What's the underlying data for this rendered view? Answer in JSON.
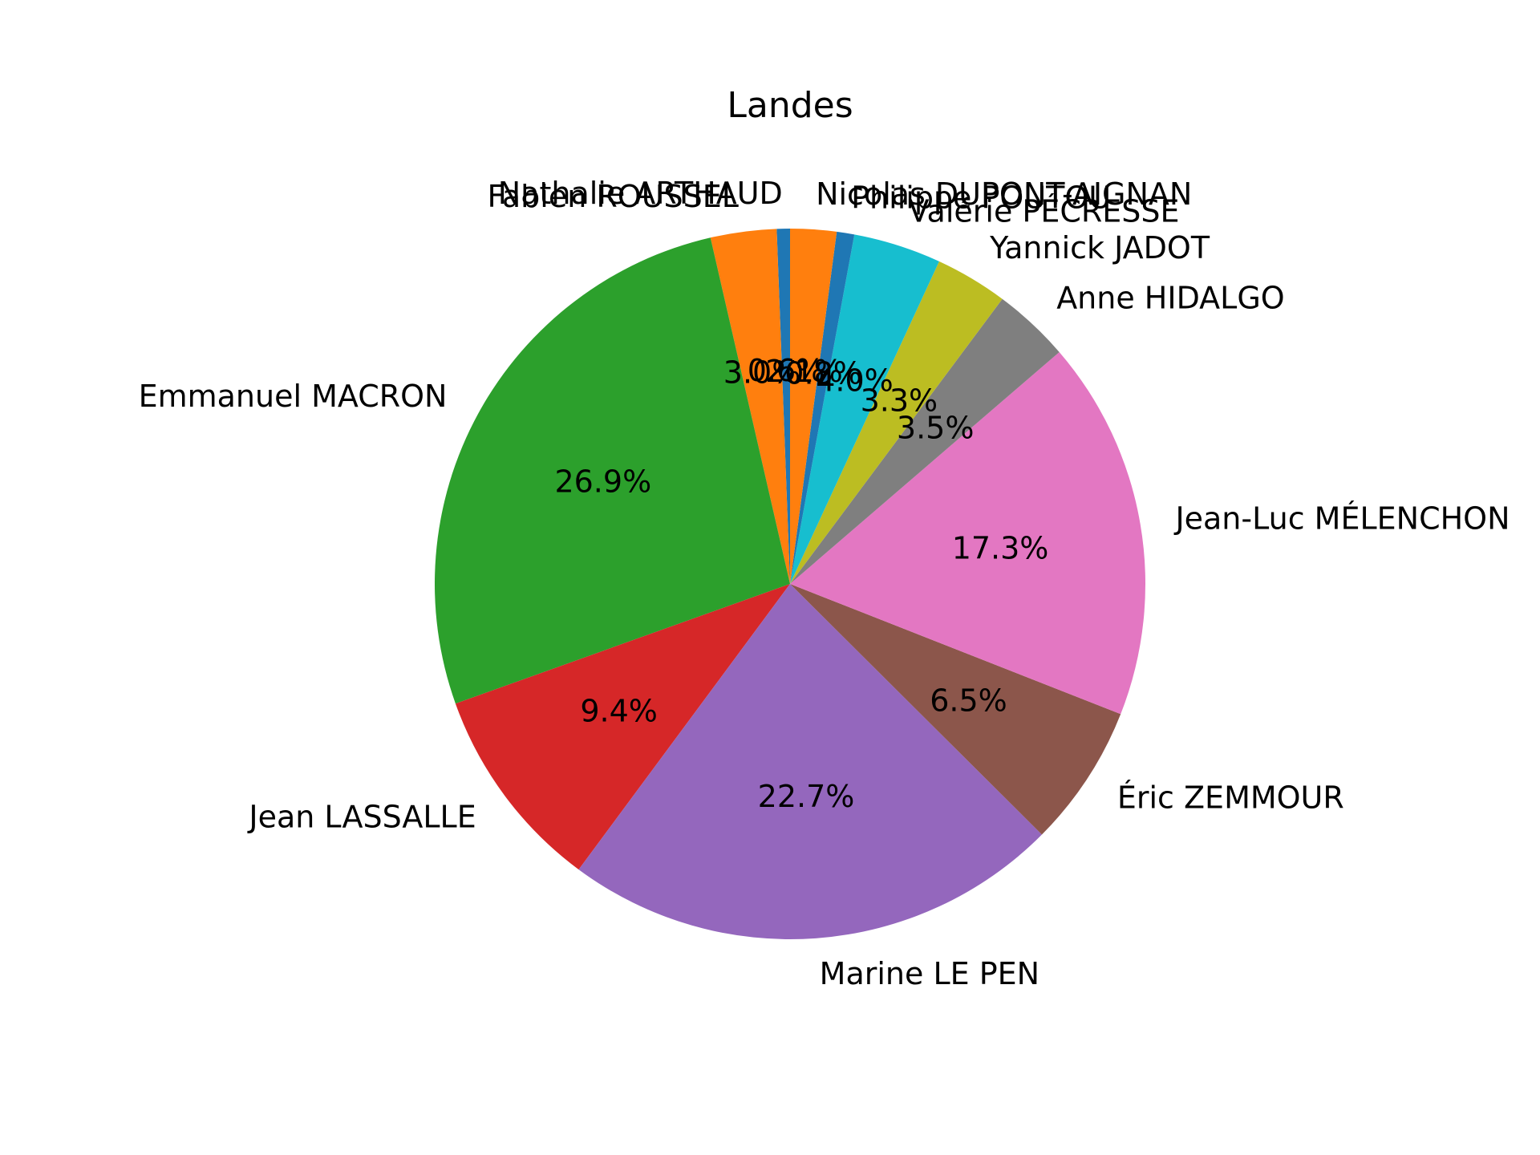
{
  "chart_data": {
    "type": "pie",
    "title": "Landes",
    "start_angle_deg": 90,
    "direction": "counterclockwise",
    "slices": [
      {
        "label": "Nathalie ARTHAUD",
        "value": 0.6,
        "pct_label": "0.6%",
        "color": "#1f77b4"
      },
      {
        "label": "Fabien ROUSSEL",
        "value": 3.0,
        "pct_label": "3.0%",
        "color": "#ff7f0e"
      },
      {
        "label": "Emmanuel MACRON",
        "value": 26.9,
        "pct_label": "26.9%",
        "color": "#2ca02c"
      },
      {
        "label": "Jean LASSALLE",
        "value": 9.4,
        "pct_label": "9.4%",
        "color": "#d62728"
      },
      {
        "label": "Marine LE PEN",
        "value": 22.7,
        "pct_label": "22.7%",
        "color": "#9467bd"
      },
      {
        "label": "Éric ZEMMOUR",
        "value": 6.5,
        "pct_label": "6.5%",
        "color": "#8c564b"
      },
      {
        "label": "Jean-Luc MÉLENCHON",
        "value": 17.3,
        "pct_label": "17.3%",
        "color": "#e377c2"
      },
      {
        "label": "Anne HIDALGO",
        "value": 3.5,
        "pct_label": "3.5%",
        "color": "#7f7f7f"
      },
      {
        "label": "Yannick JADOT",
        "value": 3.3,
        "pct_label": "3.3%",
        "color": "#bcbd22"
      },
      {
        "label": "Valérie PÉCRESSE",
        "value": 4.0,
        "pct_label": "4.0%",
        "color": "#17becf"
      },
      {
        "label": "Philippe POUTOU",
        "value": 0.8,
        "pct_label": "0.8%",
        "color": "#1f77b4"
      },
      {
        "label": "Nicolas DUPONT-AIGNAN",
        "value": 2.1,
        "pct_label": "2.1%",
        "color": "#ff7f0e"
      }
    ]
  }
}
